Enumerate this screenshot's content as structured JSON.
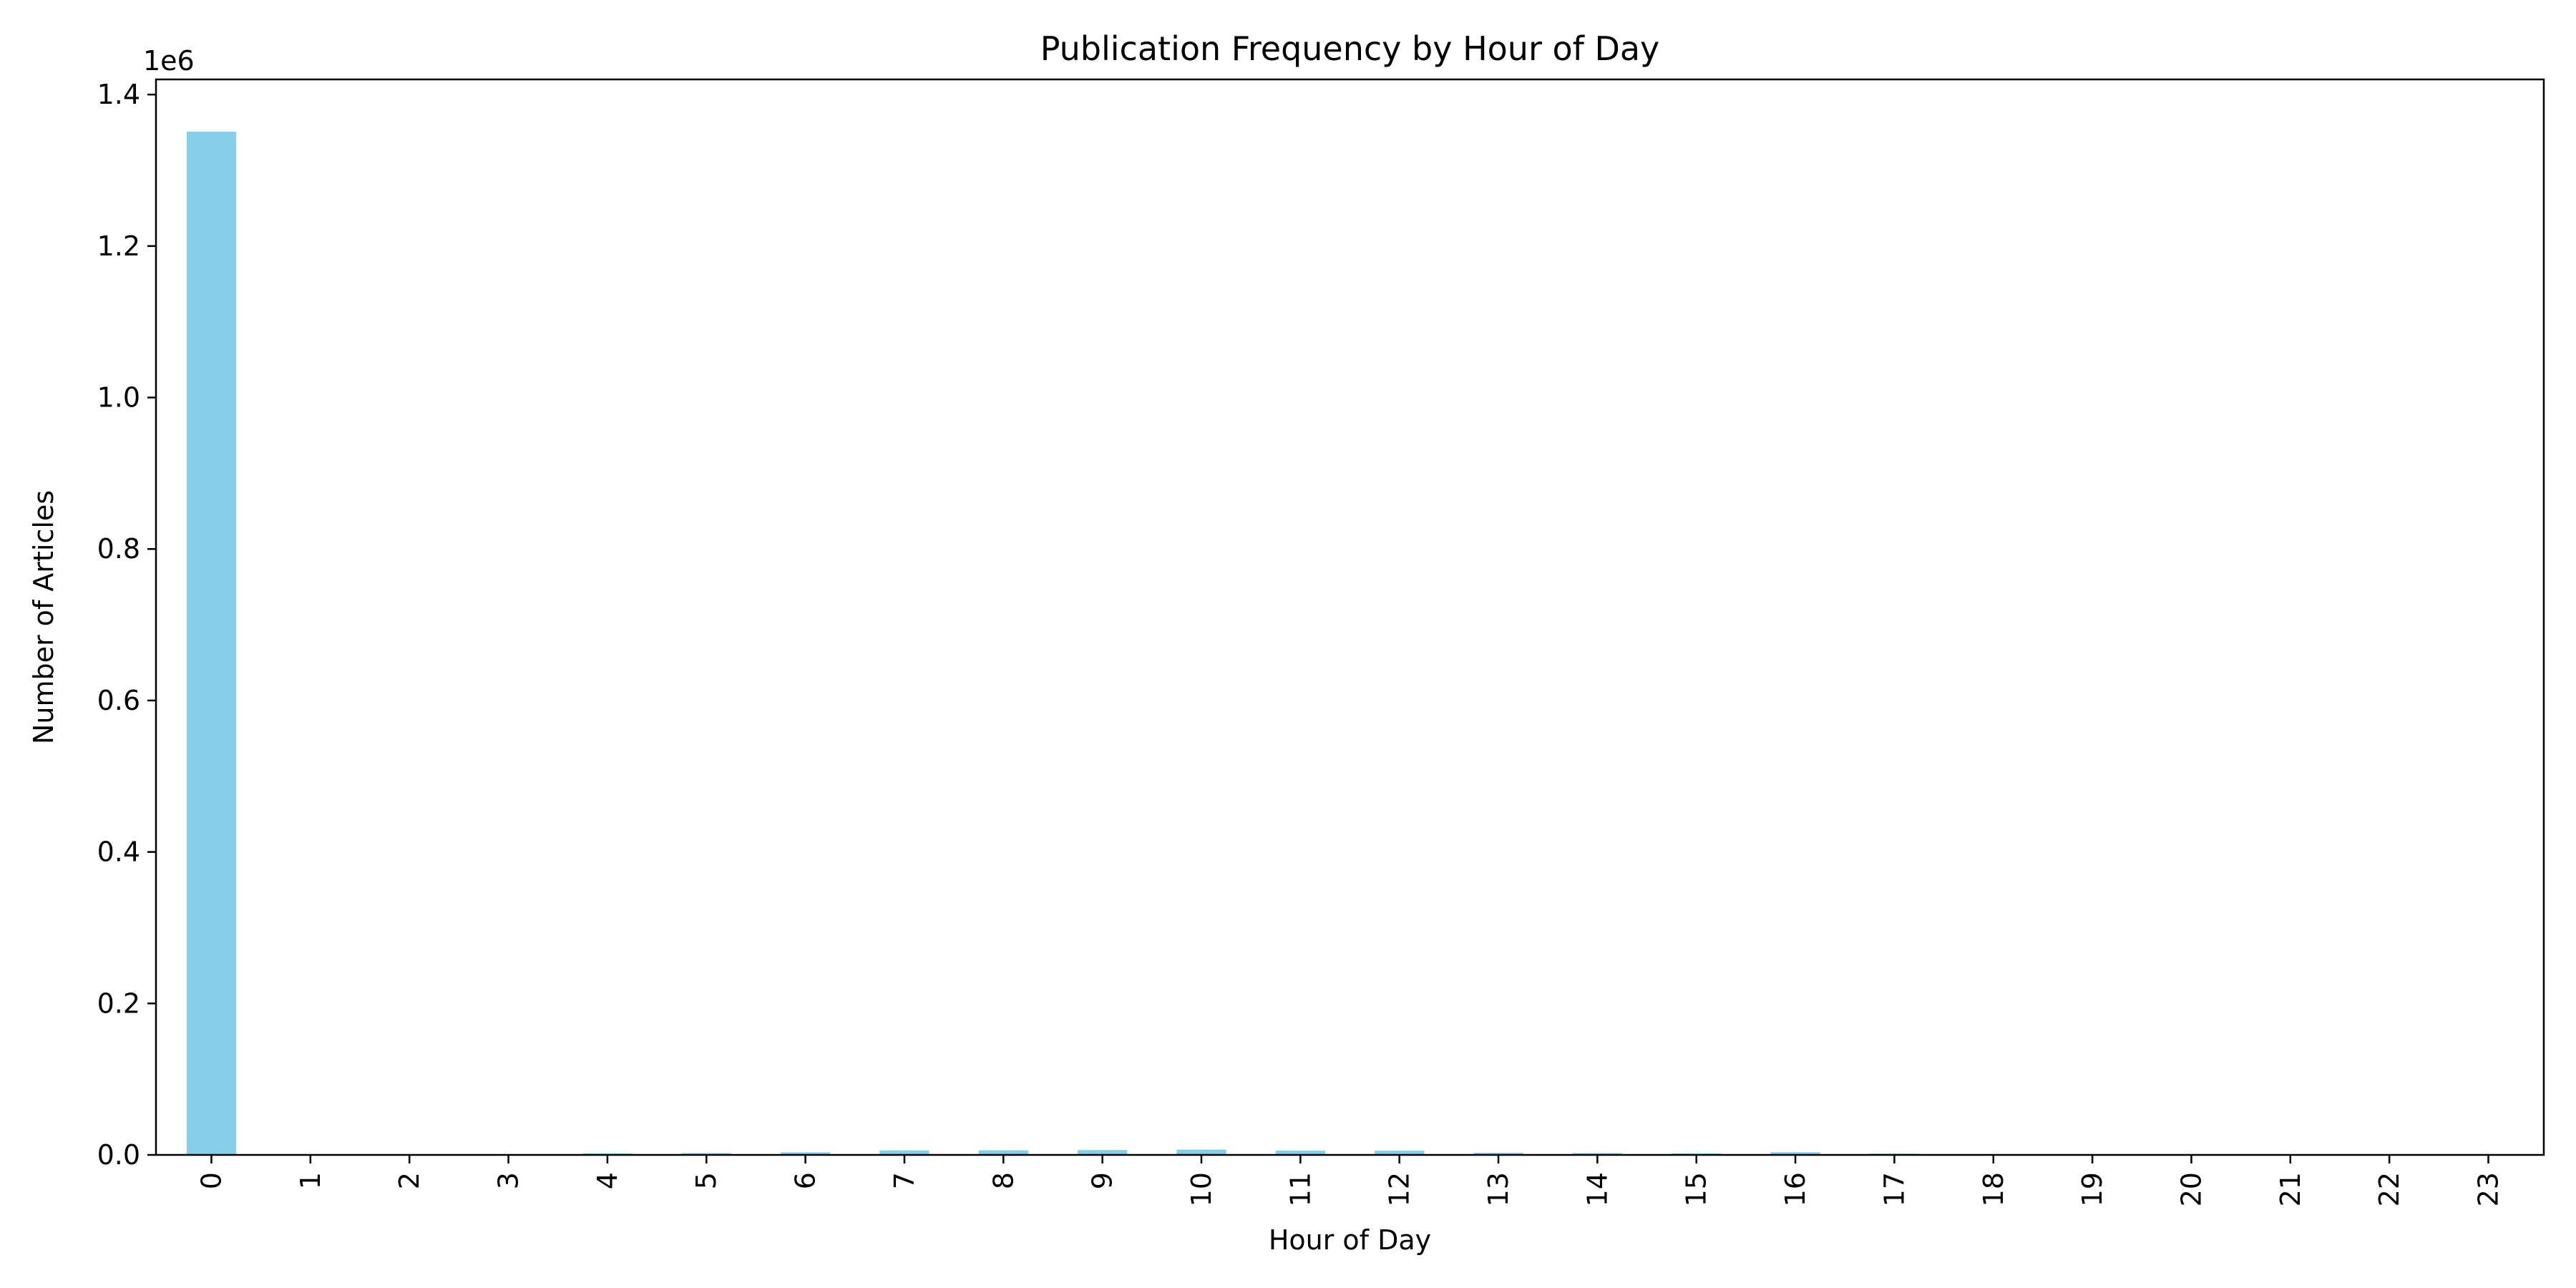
{
  "chart_data": {
    "type": "bar",
    "title": "Publication Frequency by Hour of Day",
    "xlabel": "Hour of Day",
    "ylabel": "Number of Articles",
    "y_offset_label": "1e6",
    "categories": [
      "0",
      "1",
      "2",
      "3",
      "4",
      "5",
      "6",
      "7",
      "8",
      "9",
      "10",
      "11",
      "12",
      "13",
      "14",
      "15",
      "16",
      "17",
      "18",
      "19",
      "20",
      "21",
      "22",
      "23"
    ],
    "values": [
      1351000,
      200,
      100,
      150,
      2000,
      2400,
      3400,
      6000,
      6100,
      6500,
      7000,
      5700,
      5600,
      2800,
      2400,
      2000,
      3500,
      1700,
      100,
      100,
      50,
      50,
      50,
      50
    ],
    "ylim": [
      0,
      1420000
    ],
    "yticks": [
      0.0,
      0.2,
      0.4,
      0.6,
      0.8,
      1.0,
      1.2,
      1.4
    ],
    "ytick_labels": [
      "0.0",
      "0.2",
      "0.4",
      "0.6",
      "0.8",
      "1.0",
      "1.2",
      "1.4"
    ],
    "bar_color": "#87CEEB",
    "grid": false,
    "legend": null
  }
}
